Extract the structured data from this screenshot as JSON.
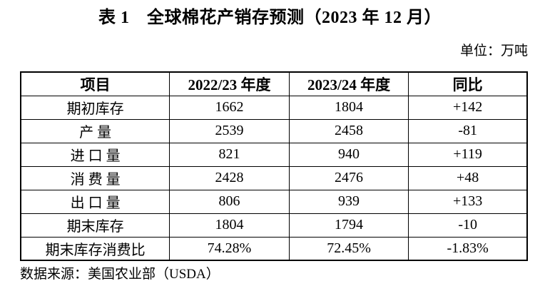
{
  "title": "表 1　全球棉花产销存预测（2023 年 12 月）",
  "unit": "单位：万吨",
  "source": "数据来源：美国农业部（USDA）",
  "table": {
    "headers": [
      "项目",
      "2022/23 年度",
      "2023/24 年度",
      "同比"
    ],
    "rows": [
      {
        "item": "期初库存",
        "y2022_23": "1662",
        "y2023_24": "1804",
        "yoy": "+142"
      },
      {
        "item": "产 量",
        "y2022_23": "2539",
        "y2023_24": "2458",
        "yoy": "-81"
      },
      {
        "item": "进 口 量",
        "y2022_23": "821",
        "y2023_24": "940",
        "yoy": "+119"
      },
      {
        "item": "消 费 量",
        "y2022_23": "2428",
        "y2023_24": "2476",
        "yoy": "+48"
      },
      {
        "item": "出 口 量",
        "y2022_23": "806",
        "y2023_24": "939",
        "yoy": "+133"
      },
      {
        "item": "期末库存",
        "y2022_23": "1804",
        "y2023_24": "1794",
        "yoy": "-10"
      },
      {
        "item": "期末库存消费比",
        "y2022_23": "74.28%",
        "y2023_24": "72.45%",
        "yoy": "-1.83%"
      }
    ]
  },
  "chart_data": {
    "type": "table",
    "title": "表 1 全球棉花产销存预测（2023 年 12 月）",
    "unit": "万吨",
    "columns": [
      "项目",
      "2022/23 年度",
      "2023/24 年度",
      "同比"
    ],
    "rows": [
      [
        "期初库存",
        1662,
        1804,
        142
      ],
      [
        "产量",
        2539,
        2458,
        -81
      ],
      [
        "进口量",
        821,
        940,
        119
      ],
      [
        "消费量",
        2428,
        2476,
        48
      ],
      [
        "出口量",
        806,
        939,
        133
      ],
      [
        "期末库存",
        1804,
        1794,
        -10
      ],
      [
        "期末库存消费比",
        "74.28%",
        "72.45%",
        "-1.83%"
      ]
    ],
    "source": "美国农业部（USDA）"
  }
}
